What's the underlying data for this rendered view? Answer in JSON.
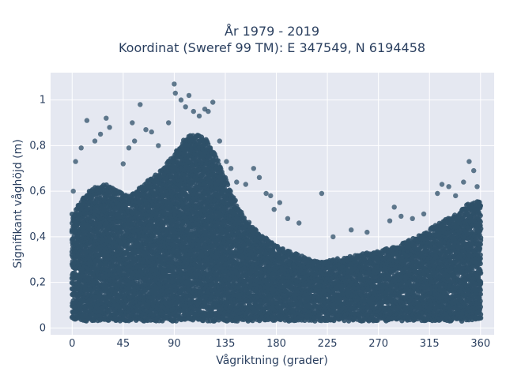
{
  "chart_data": {
    "type": "scatter",
    "title": "År 1979 - 2019",
    "subtitle": "Koordinat (Sweref 99 TM): E 347549, N 6194458",
    "xlabel": "Vågriktning (grader)",
    "ylabel": "Signifikant våghöjd (m)",
    "xlim": [
      -19,
      372
    ],
    "ylim": [
      -0.03,
      1.12
    ],
    "x_ticks": [
      0,
      45,
      90,
      135,
      180,
      225,
      270,
      315,
      360
    ],
    "y_ticks": [
      0,
      0.2,
      0.4,
      0.6,
      0.8,
      1.0
    ],
    "x_tick_labels": [
      "0",
      "45",
      "90",
      "135",
      "180",
      "225",
      "270",
      "315",
      "360"
    ],
    "y_tick_labels": [
      "0",
      "0,2",
      "0,4",
      "0,6",
      "0,8",
      "1"
    ],
    "grid": true,
    "legend": "none",
    "marker_color": "#2f5068",
    "plot_background": "#e5e8f1",
    "envelope": {
      "x": [
        0,
        10,
        20,
        30,
        40,
        50,
        60,
        70,
        80,
        90,
        100,
        110,
        120,
        130,
        140,
        150,
        160,
        170,
        180,
        190,
        200,
        210,
        220,
        230,
        240,
        250,
        260,
        270,
        280,
        290,
        300,
        310,
        320,
        330,
        340,
        350,
        360
      ],
      "max": [
        0.5,
        0.58,
        0.62,
        0.63,
        0.6,
        0.58,
        0.62,
        0.66,
        0.7,
        0.76,
        0.84,
        0.85,
        0.82,
        0.72,
        0.6,
        0.5,
        0.44,
        0.4,
        0.36,
        0.34,
        0.32,
        0.3,
        0.29,
        0.3,
        0.31,
        0.32,
        0.33,
        0.34,
        0.35,
        0.37,
        0.39,
        0.42,
        0.45,
        0.48,
        0.5,
        0.55,
        0.56
      ]
    },
    "outliers": [
      {
        "x": 1,
        "y": 0.6
      },
      {
        "x": 3,
        "y": 0.73
      },
      {
        "x": 8,
        "y": 0.79
      },
      {
        "x": 13,
        "y": 0.91
      },
      {
        "x": 20,
        "y": 0.82
      },
      {
        "x": 25,
        "y": 0.85
      },
      {
        "x": 30,
        "y": 0.92
      },
      {
        "x": 33,
        "y": 0.88
      },
      {
        "x": 45,
        "y": 0.72
      },
      {
        "x": 50,
        "y": 0.79
      },
      {
        "x": 53,
        "y": 0.9
      },
      {
        "x": 55,
        "y": 0.82
      },
      {
        "x": 60,
        "y": 0.98
      },
      {
        "x": 65,
        "y": 0.87
      },
      {
        "x": 70,
        "y": 0.86
      },
      {
        "x": 76,
        "y": 0.8
      },
      {
        "x": 85,
        "y": 0.9
      },
      {
        "x": 90,
        "y": 1.07
      },
      {
        "x": 91,
        "y": 1.03
      },
      {
        "x": 96,
        "y": 1.0
      },
      {
        "x": 100,
        "y": 0.97
      },
      {
        "x": 103,
        "y": 1.02
      },
      {
        "x": 107,
        "y": 0.95
      },
      {
        "x": 112,
        "y": 0.93
      },
      {
        "x": 117,
        "y": 0.96
      },
      {
        "x": 120,
        "y": 0.95
      },
      {
        "x": 124,
        "y": 0.99
      },
      {
        "x": 130,
        "y": 0.82
      },
      {
        "x": 136,
        "y": 0.73
      },
      {
        "x": 140,
        "y": 0.7
      },
      {
        "x": 145,
        "y": 0.64
      },
      {
        "x": 153,
        "y": 0.63
      },
      {
        "x": 160,
        "y": 0.7
      },
      {
        "x": 165,
        "y": 0.66
      },
      {
        "x": 171,
        "y": 0.59
      },
      {
        "x": 175,
        "y": 0.58
      },
      {
        "x": 178,
        "y": 0.52
      },
      {
        "x": 183,
        "y": 0.55
      },
      {
        "x": 190,
        "y": 0.48
      },
      {
        "x": 200,
        "y": 0.46
      },
      {
        "x": 220,
        "y": 0.59
      },
      {
        "x": 230,
        "y": 0.4
      },
      {
        "x": 246,
        "y": 0.43
      },
      {
        "x": 260,
        "y": 0.42
      },
      {
        "x": 280,
        "y": 0.47
      },
      {
        "x": 284,
        "y": 0.53
      },
      {
        "x": 290,
        "y": 0.49
      },
      {
        "x": 300,
        "y": 0.48
      },
      {
        "x": 310,
        "y": 0.5
      },
      {
        "x": 322,
        "y": 0.59
      },
      {
        "x": 326,
        "y": 0.63
      },
      {
        "x": 332,
        "y": 0.62
      },
      {
        "x": 338,
        "y": 0.58
      },
      {
        "x": 345,
        "y": 0.64
      },
      {
        "x": 350,
        "y": 0.73
      },
      {
        "x": 354,
        "y": 0.69
      },
      {
        "x": 357,
        "y": 0.62
      }
    ]
  }
}
